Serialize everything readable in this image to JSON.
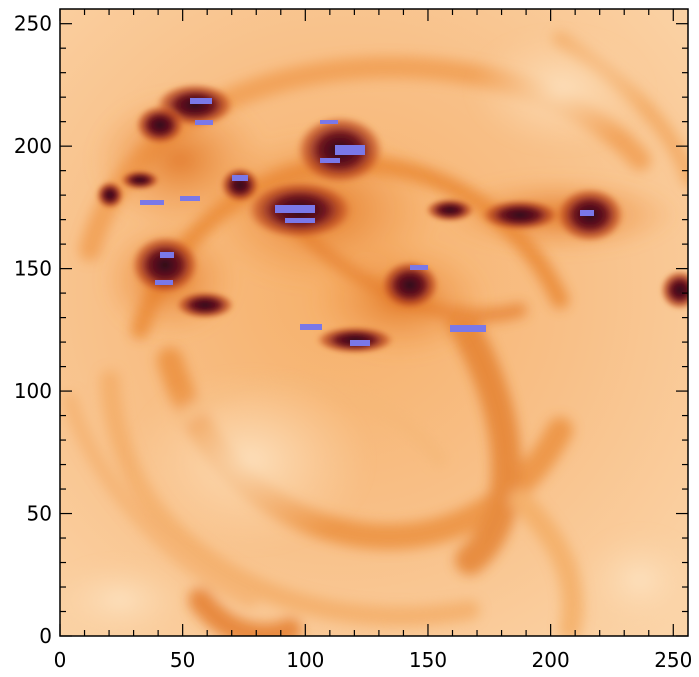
{
  "image": {
    "colormap": "solar/sunset (white→orange→dark red→blue for saturated)",
    "xlim": [
      0,
      256
    ],
    "ylim": [
      0,
      256
    ]
  },
  "axes": {
    "x_ticks": [
      {
        "value": 0,
        "label": "0"
      },
      {
        "value": 50,
        "label": "50"
      },
      {
        "value": 100,
        "label": "100"
      },
      {
        "value": 150,
        "label": "150"
      },
      {
        "value": 200,
        "label": "200"
      },
      {
        "value": 250,
        "label": "250"
      }
    ],
    "y_ticks": [
      {
        "value": 0,
        "label": "0"
      },
      {
        "value": 50,
        "label": "50"
      },
      {
        "value": 100,
        "label": "100"
      },
      {
        "value": 150,
        "label": "150"
      },
      {
        "value": 200,
        "label": "200"
      },
      {
        "value": 250,
        "label": "250"
      }
    ]
  }
}
